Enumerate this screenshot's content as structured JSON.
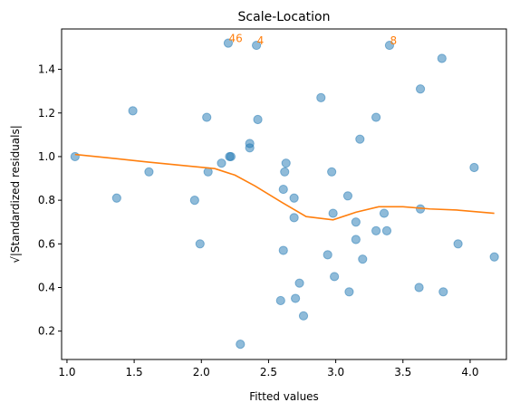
{
  "chart_data": {
    "type": "scatter",
    "title": "Scale-Location",
    "xlabel": "Fitted values",
    "ylabel": "√|Standardized residuals|",
    "xlim": [
      0.96,
      4.27
    ],
    "ylim": [
      0.07,
      1.585
    ],
    "xticks": [
      1.0,
      1.5,
      2.0,
      2.5,
      3.0,
      3.5,
      4.0
    ],
    "xtick_labels": [
      "1.0",
      "1.5",
      "2.0",
      "2.5",
      "3.0",
      "3.5",
      "4.0"
    ],
    "yticks": [
      0.2,
      0.4,
      0.6,
      0.8,
      1.0,
      1.2,
      1.4
    ],
    "ytick_labels": [
      "0.2",
      "0.4",
      "0.6",
      "0.8",
      "1.0",
      "1.2",
      "1.4"
    ],
    "grid": false,
    "point_color": "#1f77b4",
    "line_color": "#ff7f0e",
    "series": [
      {
        "kind": "points",
        "x": [
          1.06,
          1.37,
          1.49,
          1.61,
          1.95,
          1.99,
          2.04,
          2.05,
          2.15,
          2.2,
          2.21,
          2.22,
          2.29,
          2.36,
          2.36,
          2.41,
          2.42,
          2.59,
          2.61,
          2.61,
          2.62,
          2.63,
          2.69,
          2.69,
          2.7,
          2.73,
          2.76,
          2.89,
          2.94,
          2.97,
          2.98,
          2.99,
          3.09,
          3.1,
          3.15,
          3.15,
          3.18,
          3.2,
          3.3,
          3.3,
          3.36,
          3.38,
          3.4,
          3.62,
          3.63,
          3.63,
          3.79,
          3.8,
          3.91,
          4.03,
          4.18
        ],
        "y": [
          1.0,
          0.81,
          1.21,
          0.93,
          0.8,
          0.6,
          1.18,
          0.93,
          0.97,
          1.52,
          1.0,
          1.0,
          0.14,
          1.04,
          1.06,
          1.51,
          1.17,
          0.34,
          0.57,
          0.85,
          0.93,
          0.97,
          0.72,
          0.81,
          0.35,
          0.42,
          0.27,
          1.27,
          0.55,
          0.93,
          0.74,
          0.45,
          0.82,
          0.38,
          0.62,
          0.7,
          1.08,
          0.53,
          1.18,
          0.66,
          0.74,
          0.66,
          1.51,
          0.4,
          0.76,
          1.31,
          1.45,
          0.38,
          0.6,
          0.95,
          0.54
        ]
      },
      {
        "kind": "line",
        "x": [
          1.06,
          1.3,
          1.6,
          1.9,
          2.1,
          2.25,
          2.4,
          2.6,
          2.78,
          2.98,
          3.15,
          3.32,
          3.5,
          3.7,
          3.9,
          4.18
        ],
        "y": [
          1.01,
          0.995,
          0.975,
          0.957,
          0.945,
          0.915,
          0.865,
          0.79,
          0.725,
          0.71,
          0.745,
          0.77,
          0.77,
          0.76,
          0.755,
          0.74
        ]
      }
    ],
    "annotations": [
      {
        "label": "46",
        "x": 2.2,
        "y": 1.52
      },
      {
        "label": "4",
        "x": 2.41,
        "y": 1.51
      },
      {
        "label": "8",
        "x": 3.4,
        "y": 1.51
      }
    ]
  }
}
